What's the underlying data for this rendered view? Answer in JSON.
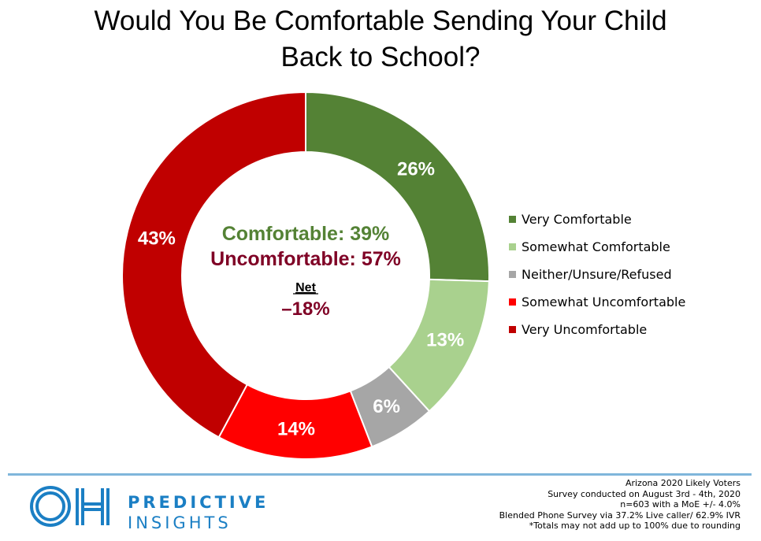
{
  "title_lines": [
    "Would You Be Comfortable Sending Your Child",
    "Back to School?"
  ],
  "chart_data": {
    "type": "pie",
    "variant": "donut",
    "title": "Would You Be Comfortable Sending Your Child Back to School?",
    "categories": [
      "Very Comfortable",
      "Somewhat Comfortable",
      "Neither/Unsure/Refused",
      "Somewhat Uncomfortable",
      "Very Uncomfortable"
    ],
    "values": [
      26,
      13,
      6,
      14,
      43
    ],
    "labels": [
      "26%",
      "13%",
      "6%",
      "14%",
      "43%"
    ],
    "colors": [
      "#548235",
      "#a9d18e",
      "#a6a6a6",
      "#ff0000",
      "#c00000"
    ],
    "legend_position": "right"
  },
  "center": {
    "comfortable": "Comfortable: 39%",
    "uncomfortable": "Uncomfortable: 57%",
    "net_label": "Net",
    "net_value": "–18%",
    "comfortable_color": "#548235",
    "uncomfortable_color": "#7f0025"
  },
  "footer": {
    "brand_line1": "PREDICTIVE",
    "brand_line2": "INSIGHTS",
    "brand_color": "#1b7fc4",
    "notes": [
      "Arizona 2020 Likely Voters",
      "Survey conducted on August 3rd - 4th, 2020",
      "n=603 with a MoE +/- 4.0%",
      "Blended Phone Survey via 37.2% Live caller/ 62.9% IVR",
      "*Totals may not add up to 100% due to rounding"
    ]
  }
}
